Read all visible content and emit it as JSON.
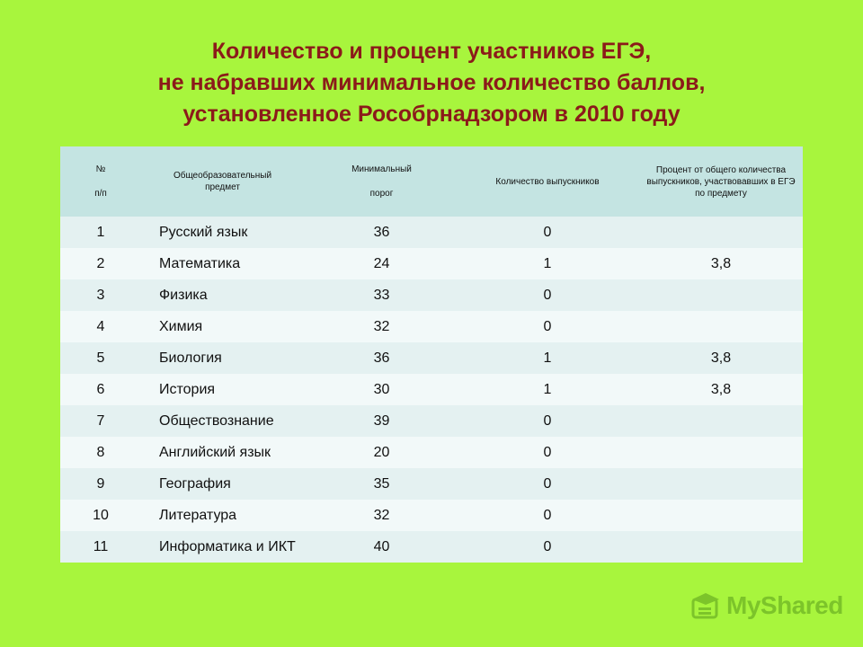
{
  "title": {
    "line1": "Количество и процент участников ЕГЭ,",
    "line2": "не набравших минимальное количество баллов,",
    "line3": "установленное Рособрнадзором в 2010 году"
  },
  "table": {
    "headers": {
      "num_a": "№",
      "num_b": "п/п",
      "subject_a": "Общеобразовательный",
      "subject_b": "предмет",
      "threshold_a": "Минимальный",
      "threshold_b": "порог",
      "count": "Количество выпускников",
      "percent": "Процент от общего количества выпускников, участвовавших в ЕГЭ по предмету"
    },
    "rows": [
      {
        "n": "1",
        "subject": "Русский язык",
        "threshold": "36",
        "count": "0",
        "percent": ""
      },
      {
        "n": "2",
        "subject": "Математика",
        "threshold": "24",
        "count": "1",
        "percent": "3,8"
      },
      {
        "n": "3",
        "subject": "Физика",
        "threshold": "33",
        "count": "0",
        "percent": ""
      },
      {
        "n": "4",
        "subject": "Химия",
        "threshold": "32",
        "count": "0",
        "percent": ""
      },
      {
        "n": "5",
        "subject": "Биология",
        "threshold": "36",
        "count": "1",
        "percent": "3,8"
      },
      {
        "n": "6",
        "subject": "История",
        "threshold": "30",
        "count": "1",
        "percent": "3,8"
      },
      {
        "n": "7",
        "subject": "Обществознание",
        "threshold": "39",
        "count": "0",
        "percent": ""
      },
      {
        "n": "8",
        "subject": "Английский язык",
        "threshold": "20",
        "count": "0",
        "percent": ""
      },
      {
        "n": "9",
        "subject": "География",
        "threshold": "35",
        "count": "0",
        "percent": ""
      },
      {
        "n": "10",
        "subject": "Литература",
        "threshold": "32",
        "count": "0",
        "percent": ""
      },
      {
        "n": "11",
        "subject": "Информатика и ИКТ",
        "threshold": "40",
        "count": "0",
        "percent": ""
      }
    ]
  },
  "watermark": {
    "text": "MyShared",
    "icon": "mortarboard-icon",
    "color": "#7cc42a"
  }
}
